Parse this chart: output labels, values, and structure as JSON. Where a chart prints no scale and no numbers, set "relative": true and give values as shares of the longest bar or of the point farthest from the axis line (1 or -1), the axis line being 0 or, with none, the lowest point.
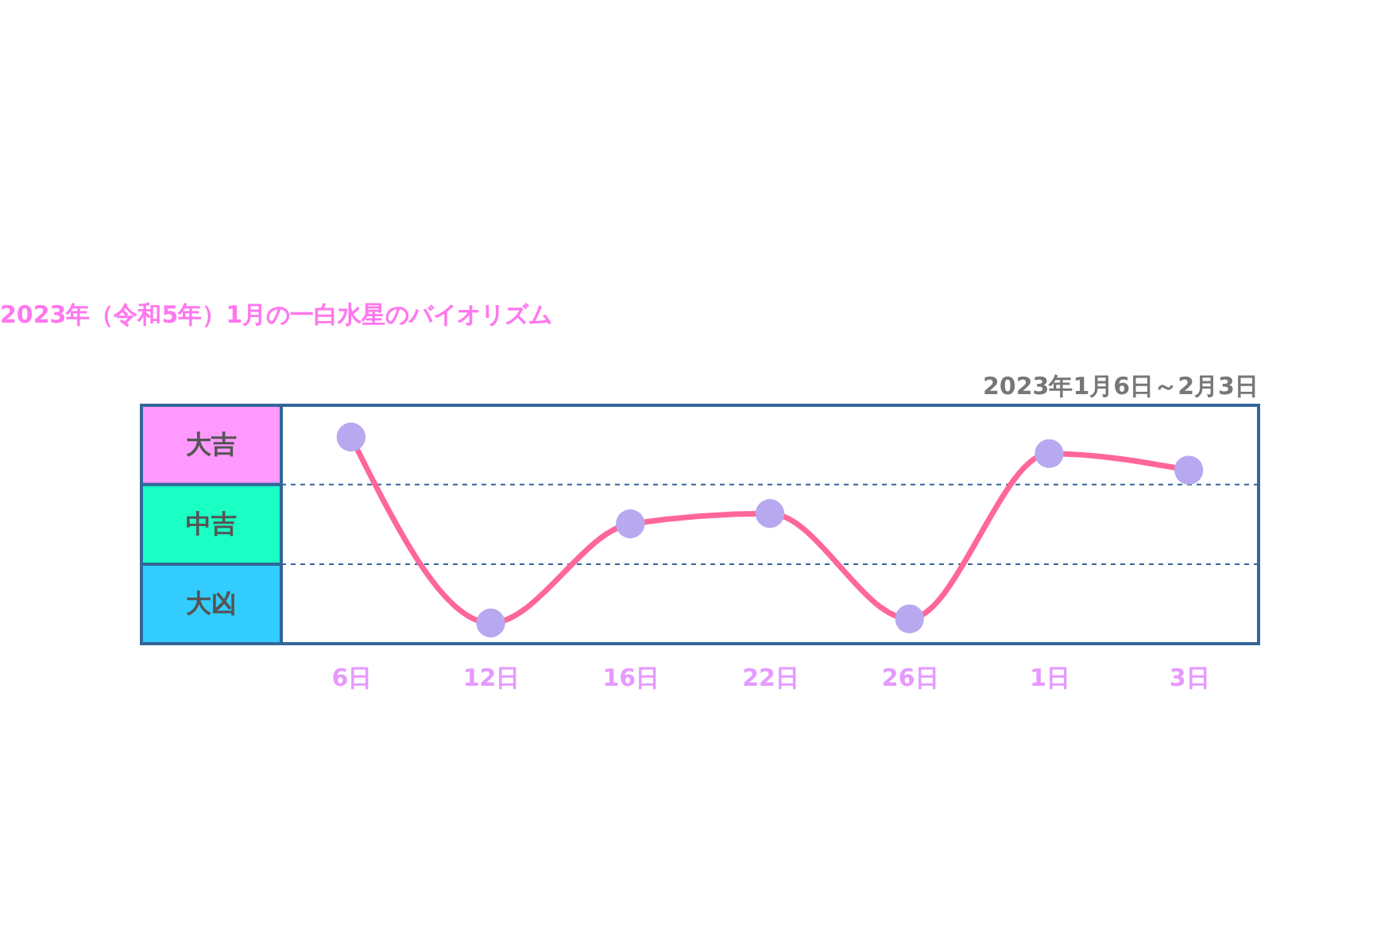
{
  "chart_data": {
    "type": "line",
    "title": "2023年（令和5年）1月の一白水星のバイオリズム",
    "subtitle": "2023年1月6日～2月3日",
    "categories": [
      "6日",
      "12日",
      "16日",
      "22日",
      "26日",
      "1日",
      "3日"
    ],
    "relative": true,
    "series": [
      {
        "color": "#ff6699",
        "colors": [
          "#b8a8f0",
          "#b8a8f0",
          "#b8a8f0",
          "#b8a8f0",
          "#b8a8f0",
          "#b8a8f0",
          "#b8a8f0"
        ],
        "values": [
          1,
          0.1,
          0.58,
          0.63,
          0.12,
          0.92,
          0.84
        ]
      }
    ],
    "marker": "circle",
    "line_style": "solid",
    "ref_lines": [
      {
        "axis": "y",
        "value": 0.77,
        "color": "#336699",
        "line_style": "dashed"
      },
      {
        "axis": "y",
        "value": 0.385,
        "color": "#336699",
        "line_style": "dashed"
      }
    ],
    "annotations": [
      "大吉",
      "中吉",
      "大凶"
    ]
  }
}
